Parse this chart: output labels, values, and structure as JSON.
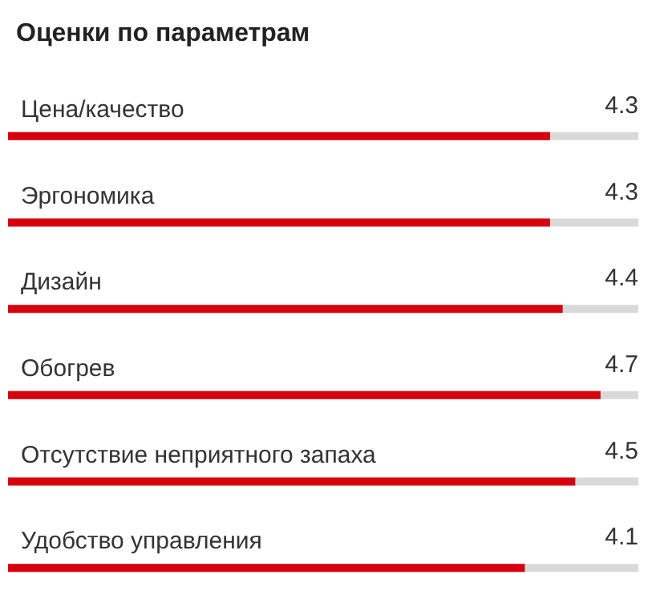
{
  "chart_data": {
    "type": "bar",
    "orientation": "horizontal",
    "title": "Оценки по параметрам",
    "categories": [
      "Цена/качество",
      "Эргономика",
      "Дизайн",
      "Обогрев",
      "Отсутствие неприятного запаха",
      "Удобство управления"
    ],
    "values": [
      4.3,
      4.3,
      4.4,
      4.7,
      4.5,
      4.1
    ],
    "color": "#d9000d",
    "xlim": [
      0,
      5
    ],
    "data_labels": true,
    "tick_labels": "y"
  }
}
